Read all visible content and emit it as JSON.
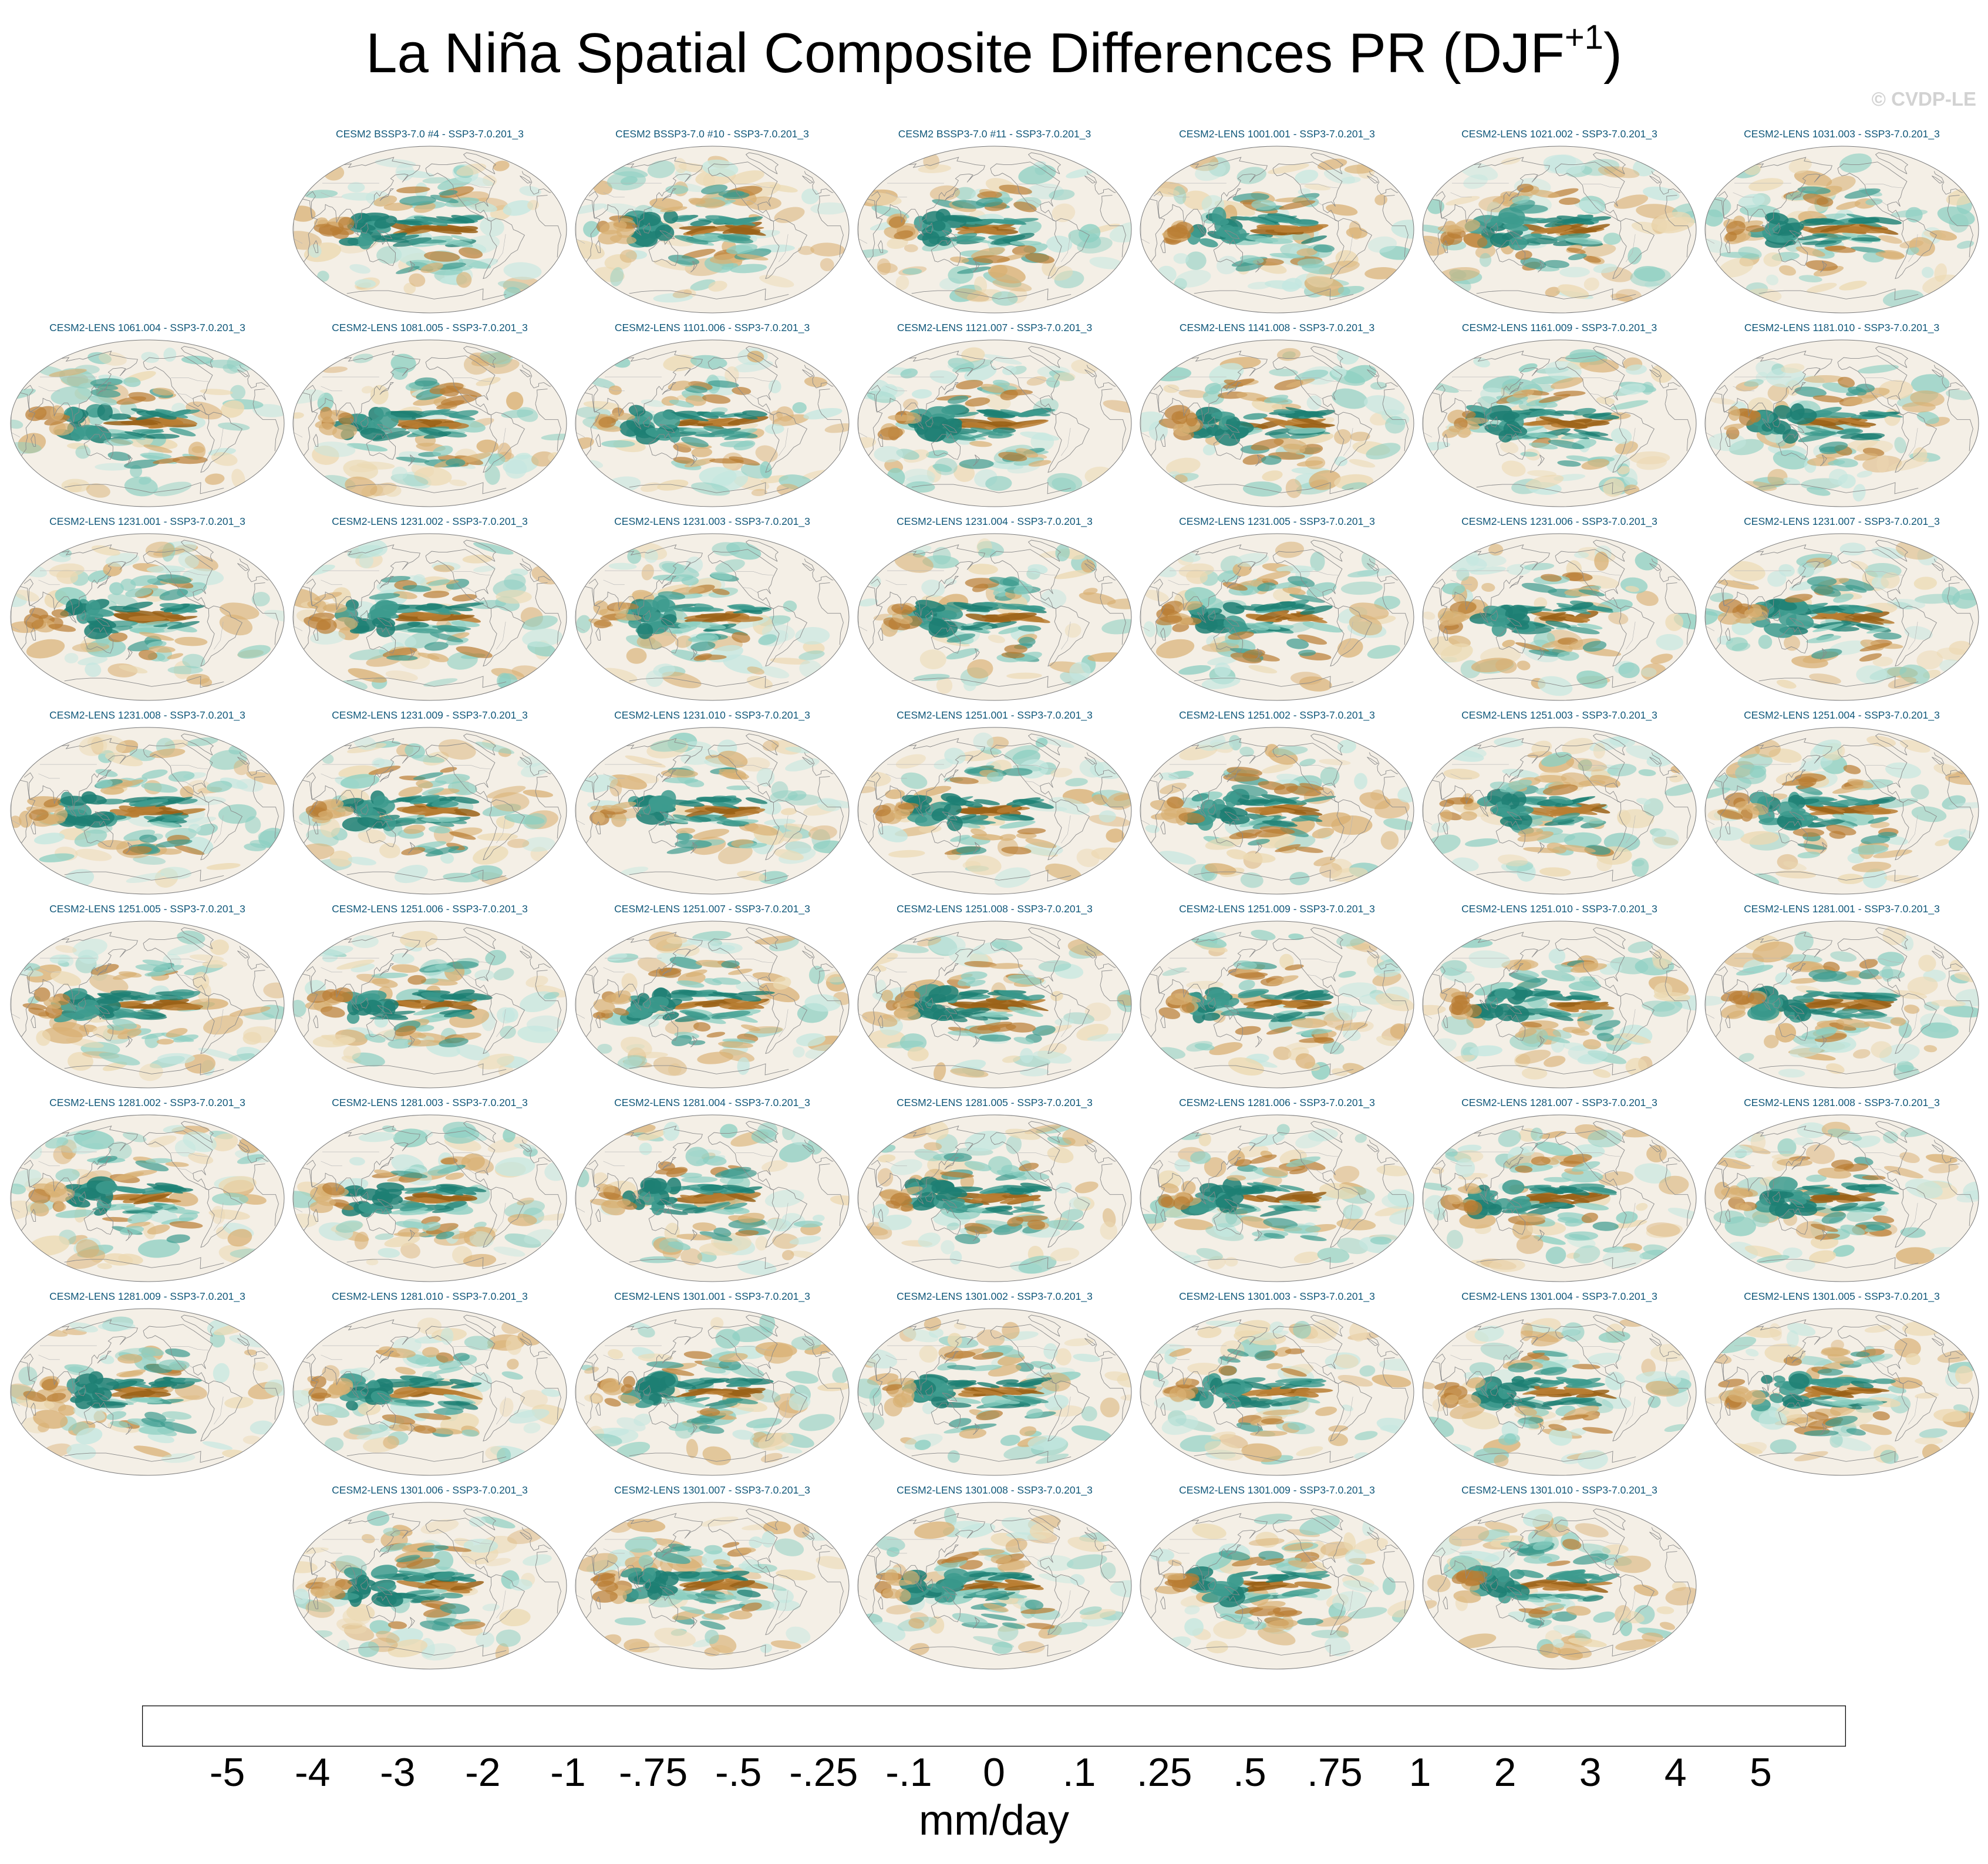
{
  "title": {
    "main": "La Niña Spatial Composite Differences PR (DJF",
    "superscript": "+1",
    "close": ")"
  },
  "watermark": "© CVDP-LE",
  "panels": [
    {
      "row": 0,
      "col": 1,
      "label": "CESM2 BSSP3-7.0 #4 - SSP3-7.0.201_3"
    },
    {
      "row": 0,
      "col": 2,
      "label": "CESM2 BSSP3-7.0 #10 - SSP3-7.0.201_3"
    },
    {
      "row": 0,
      "col": 3,
      "label": "CESM2 BSSP3-7.0 #11 - SSP3-7.0.201_3"
    },
    {
      "row": 0,
      "col": 4,
      "label": "CESM2-LENS 1001.001 - SSP3-7.0.201_3"
    },
    {
      "row": 0,
      "col": 5,
      "label": "CESM2-LENS 1021.002 - SSP3-7.0.201_3"
    },
    {
      "row": 0,
      "col": 6,
      "label": "CESM2-LENS 1031.003 - SSP3-7.0.201_3"
    },
    {
      "row": 1,
      "col": 0,
      "label": "CESM2-LENS 1061.004 - SSP3-7.0.201_3"
    },
    {
      "row": 1,
      "col": 1,
      "label": "CESM2-LENS 1081.005 - SSP3-7.0.201_3"
    },
    {
      "row": 1,
      "col": 2,
      "label": "CESM2-LENS 1101.006 - SSP3-7.0.201_3"
    },
    {
      "row": 1,
      "col": 3,
      "label": "CESM2-LENS 1121.007 - SSP3-7.0.201_3"
    },
    {
      "row": 1,
      "col": 4,
      "label": "CESM2-LENS 1141.008 - SSP3-7.0.201_3"
    },
    {
      "row": 1,
      "col": 5,
      "label": "CESM2-LENS 1161.009 - SSP3-7.0.201_3"
    },
    {
      "row": 1,
      "col": 6,
      "label": "CESM2-LENS 1181.010 - SSP3-7.0.201_3"
    },
    {
      "row": 2,
      "col": 0,
      "label": "CESM2-LENS 1231.001 - SSP3-7.0.201_3"
    },
    {
      "row": 2,
      "col": 1,
      "label": "CESM2-LENS 1231.002 - SSP3-7.0.201_3"
    },
    {
      "row": 2,
      "col": 2,
      "label": "CESM2-LENS 1231.003 - SSP3-7.0.201_3"
    },
    {
      "row": 2,
      "col": 3,
      "label": "CESM2-LENS 1231.004 - SSP3-7.0.201_3"
    },
    {
      "row": 2,
      "col": 4,
      "label": "CESM2-LENS 1231.005 - SSP3-7.0.201_3"
    },
    {
      "row": 2,
      "col": 5,
      "label": "CESM2-LENS 1231.006 - SSP3-7.0.201_3"
    },
    {
      "row": 2,
      "col": 6,
      "label": "CESM2-LENS 1231.007 - SSP3-7.0.201_3"
    },
    {
      "row": 3,
      "col": 0,
      "label": "CESM2-LENS 1231.008 - SSP3-7.0.201_3"
    },
    {
      "row": 3,
      "col": 1,
      "label": "CESM2-LENS 1231.009 - SSP3-7.0.201_3"
    },
    {
      "row": 3,
      "col": 2,
      "label": "CESM2-LENS 1231.010 - SSP3-7.0.201_3"
    },
    {
      "row": 3,
      "col": 3,
      "label": "CESM2-LENS 1251.001 - SSP3-7.0.201_3"
    },
    {
      "row": 3,
      "col": 4,
      "label": "CESM2-LENS 1251.002 - SSP3-7.0.201_3"
    },
    {
      "row": 3,
      "col": 5,
      "label": "CESM2-LENS 1251.003 - SSP3-7.0.201_3"
    },
    {
      "row": 3,
      "col": 6,
      "label": "CESM2-LENS 1251.004 - SSP3-7.0.201_3"
    },
    {
      "row": 4,
      "col": 0,
      "label": "CESM2-LENS 1251.005 - SSP3-7.0.201_3"
    },
    {
      "row": 4,
      "col": 1,
      "label": "CESM2-LENS 1251.006 - SSP3-7.0.201_3"
    },
    {
      "row": 4,
      "col": 2,
      "label": "CESM2-LENS 1251.007 - SSP3-7.0.201_3"
    },
    {
      "row": 4,
      "col": 3,
      "label": "CESM2-LENS 1251.008 - SSP3-7.0.201_3"
    },
    {
      "row": 4,
      "col": 4,
      "label": "CESM2-LENS 1251.009 - SSP3-7.0.201_3"
    },
    {
      "row": 4,
      "col": 5,
      "label": "CESM2-LENS 1251.010 - SSP3-7.0.201_3"
    },
    {
      "row": 4,
      "col": 6,
      "label": "CESM2-LENS 1281.001 - SSP3-7.0.201_3"
    },
    {
      "row": 5,
      "col": 0,
      "label": "CESM2-LENS 1281.002 - SSP3-7.0.201_3"
    },
    {
      "row": 5,
      "col": 1,
      "label": "CESM2-LENS 1281.003 - SSP3-7.0.201_3"
    },
    {
      "row": 5,
      "col": 2,
      "label": "CESM2-LENS 1281.004 - SSP3-7.0.201_3"
    },
    {
      "row": 5,
      "col": 3,
      "label": "CESM2-LENS 1281.005 - SSP3-7.0.201_3"
    },
    {
      "row": 5,
      "col": 4,
      "label": "CESM2-LENS 1281.006 - SSP3-7.0.201_3"
    },
    {
      "row": 5,
      "col": 5,
      "label": "CESM2-LENS 1281.007 - SSP3-7.0.201_3"
    },
    {
      "row": 5,
      "col": 6,
      "label": "CESM2-LENS 1281.008 - SSP3-7.0.201_3"
    },
    {
      "row": 6,
      "col": 0,
      "label": "CESM2-LENS 1281.009 - SSP3-7.0.201_3"
    },
    {
      "row": 6,
      "col": 1,
      "label": "CESM2-LENS 1281.010 - SSP3-7.0.201_3"
    },
    {
      "row": 6,
      "col": 2,
      "label": "CESM2-LENS 1301.001 - SSP3-7.0.201_3"
    },
    {
      "row": 6,
      "col": 3,
      "label": "CESM2-LENS 1301.002 - SSP3-7.0.201_3"
    },
    {
      "row": 6,
      "col": 4,
      "label": "CESM2-LENS 1301.003 - SSP3-7.0.201_3"
    },
    {
      "row": 6,
      "col": 5,
      "label": "CESM2-LENS 1301.004 - SSP3-7.0.201_3"
    },
    {
      "row": 6,
      "col": 6,
      "label": "CESM2-LENS 1301.005 - SSP3-7.0.201_3"
    },
    {
      "row": 7,
      "col": 1,
      "label": "CESM2-LENS 1301.006 - SSP3-7.0.201_3"
    },
    {
      "row": 7,
      "col": 2,
      "label": "CESM2-LENS 1301.007 - SSP3-7.0.201_3"
    },
    {
      "row": 7,
      "col": 3,
      "label": "CESM2-LENS 1301.008 - SSP3-7.0.201_3"
    },
    {
      "row": 7,
      "col": 4,
      "label": "CESM2-LENS 1301.009 - SSP3-7.0.201_3"
    },
    {
      "row": 7,
      "col": 5,
      "label": "CESM2-LENS 1301.010 - SSP3-7.0.201_3"
    }
  ],
  "colorbar": {
    "colors": [
      "#543005",
      "#6f3f0a",
      "#8c5110",
      "#ab6c23",
      "#c38b3e",
      "#d3a865",
      "#e2c68e",
      "#efdcb3",
      "#f5ead0",
      "#f4f1eb",
      "#e8f2f1",
      "#d2ede8",
      "#b1e0d9",
      "#8cd1c4",
      "#62b8aa",
      "#3d9b8e",
      "#22837a",
      "#006357",
      "#004d42",
      "#003427"
    ],
    "labels": [
      "-5",
      "-4",
      "-3",
      "-2",
      "-1",
      "-.75",
      "-.5",
      "-.25",
      "-.1",
      "0",
      ".1",
      ".25",
      ".5",
      ".75",
      "1",
      "2",
      "3",
      "4",
      "5"
    ],
    "units": "mm/day"
  },
  "map_palette": {
    "ocean": "#f4efe6",
    "coast": "#8a8a8a",
    "border": "#b5b5b5",
    "wet": [
      "#c4e7e0",
      "#8ccfc2",
      "#3d9b8e",
      "#1d7f73"
    ],
    "dry": [
      "#ecd9b2",
      "#d9b073",
      "#b97e33",
      "#9a6218"
    ]
  }
}
